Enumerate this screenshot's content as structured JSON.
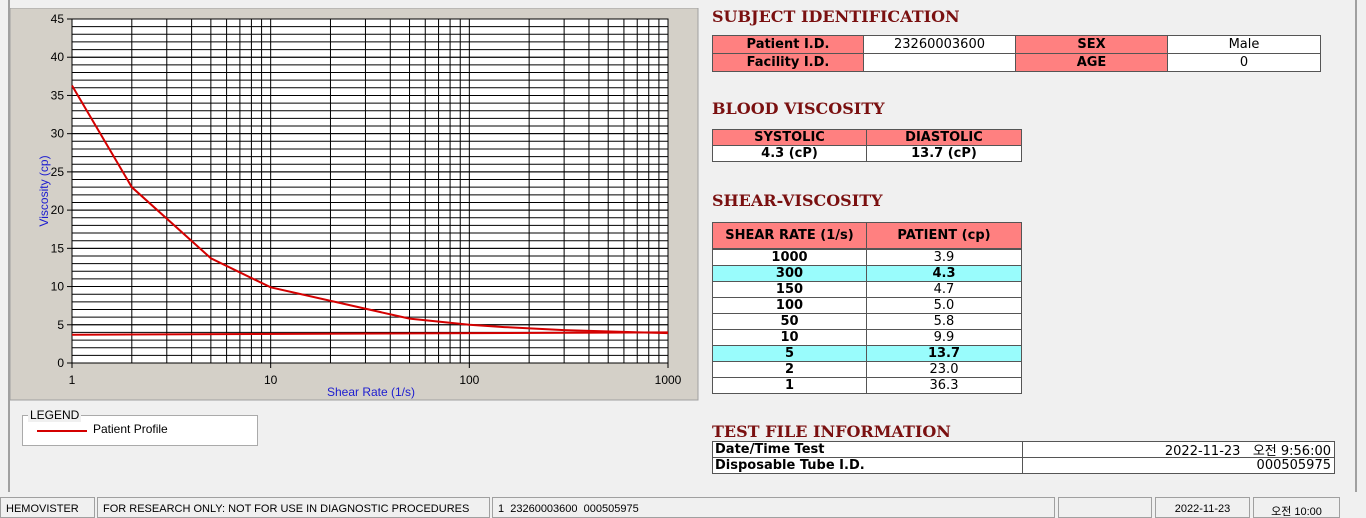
{
  "chart_data": {
    "type": "line",
    "y_label": "Viscosity (cp)",
    "x_label": "Shear Rate (1/s)",
    "x_scale": "log",
    "grid": true,
    "xlim": [
      1,
      1000
    ],
    "xticks": [
      1,
      10,
      100,
      1000
    ],
    "ylim": [
      0,
      45
    ],
    "yticks": [
      0,
      5,
      10,
      15,
      20,
      25,
      30,
      35,
      40,
      45
    ],
    "legend_title": "LEGEND",
    "series": [
      {
        "name": "Patient Profile",
        "color": "#d40000",
        "x": [
          1,
          2,
          5,
          10,
          50,
          100,
          150,
          300,
          1000
        ],
        "values": [
          36.3,
          23.0,
          13.7,
          9.9,
          5.8,
          5.0,
          4.7,
          4.3,
          3.9
        ]
      },
      {
        "color": "#d40000",
        "x": [
          1,
          1000
        ],
        "values": [
          3.7,
          4.0
        ]
      }
    ]
  },
  "subject_identification": {
    "title": "SUBJECT IDENTIFICATION",
    "rows": [
      [
        "Patient I.D.",
        "23260003600",
        "SEX",
        "Male"
      ],
      [
        "Facility I.D.",
        null,
        "AGE",
        "0"
      ]
    ]
  },
  "blood_viscosity": {
    "title": "BLOOD VISCOSITY",
    "headers": [
      "SYSTOLIC",
      "DIASTOLIC"
    ],
    "values": [
      "4.3 (cP)",
      "13.7 (cP)"
    ]
  },
  "shear_viscosity": {
    "title": "SHEAR-VISCOSITY",
    "headers": [
      "SHEAR RATE (1/s)",
      "PATIENT (cp)"
    ],
    "rows": [
      [
        "1000",
        "3.9"
      ],
      [
        "300",
        "4.3"
      ],
      [
        "150",
        "4.7"
      ],
      [
        "100",
        "5.0"
      ],
      [
        "50",
        "5.8"
      ],
      [
        "10",
        "9.9"
      ],
      [
        "5",
        "13.7"
      ],
      [
        "2",
        "23.0"
      ],
      [
        "1",
        "36.3"
      ]
    ],
    "highlighted_rows": [
      1,
      6
    ]
  },
  "test_file_information": {
    "title": "TEST FILE INFORMATION",
    "rows": [
      [
        "Date/Time Test",
        "2022-11-23   오전 9:56:00"
      ],
      [
        "Disposable Tube I.D.",
        "000505975"
      ]
    ]
  },
  "status_bar": [
    "HEMOVISTER",
    "FOR RESEARCH ONLY: NOT FOR USE IN DIAGNOSTIC PROCEDURES",
    "1  23260003600  000505975",
    null,
    "2022-11-23",
    "오전 10:00"
  ]
}
